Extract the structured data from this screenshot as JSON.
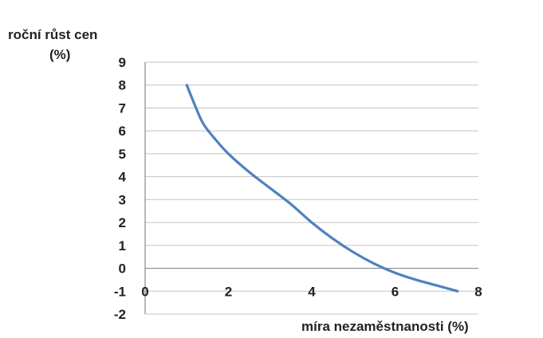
{
  "chart_data": {
    "type": "line",
    "ylabel_lines": [
      "roční růst cen",
      "(%)"
    ],
    "xlabel": "míra nezaměstnanosti (%)",
    "xlim": [
      0,
      8
    ],
    "ylim": [
      -2,
      9
    ],
    "x_ticks": [
      "0",
      "2",
      "4",
      "6",
      "8"
    ],
    "y_ticks": [
      "9",
      "8",
      "7",
      "6",
      "5",
      "4",
      "3",
      "2",
      "1",
      "0",
      "-1",
      "-2"
    ],
    "grid": true,
    "legend": "none",
    "series": [
      {
        "color": "#4f81bd",
        "points": [
          [
            1.0,
            8.0
          ],
          [
            1.2,
            7.1
          ],
          [
            1.4,
            6.3
          ],
          [
            1.7,
            5.6
          ],
          [
            2.0,
            5.0
          ],
          [
            2.5,
            4.2
          ],
          [
            3.0,
            3.5
          ],
          [
            3.5,
            2.8
          ],
          [
            4.0,
            2.0
          ],
          [
            4.5,
            1.3
          ],
          [
            5.0,
            0.7
          ],
          [
            5.5,
            0.2
          ],
          [
            6.0,
            -0.2
          ],
          [
            6.5,
            -0.5
          ],
          [
            7.0,
            -0.75
          ],
          [
            7.5,
            -1.0
          ]
        ]
      }
    ]
  }
}
